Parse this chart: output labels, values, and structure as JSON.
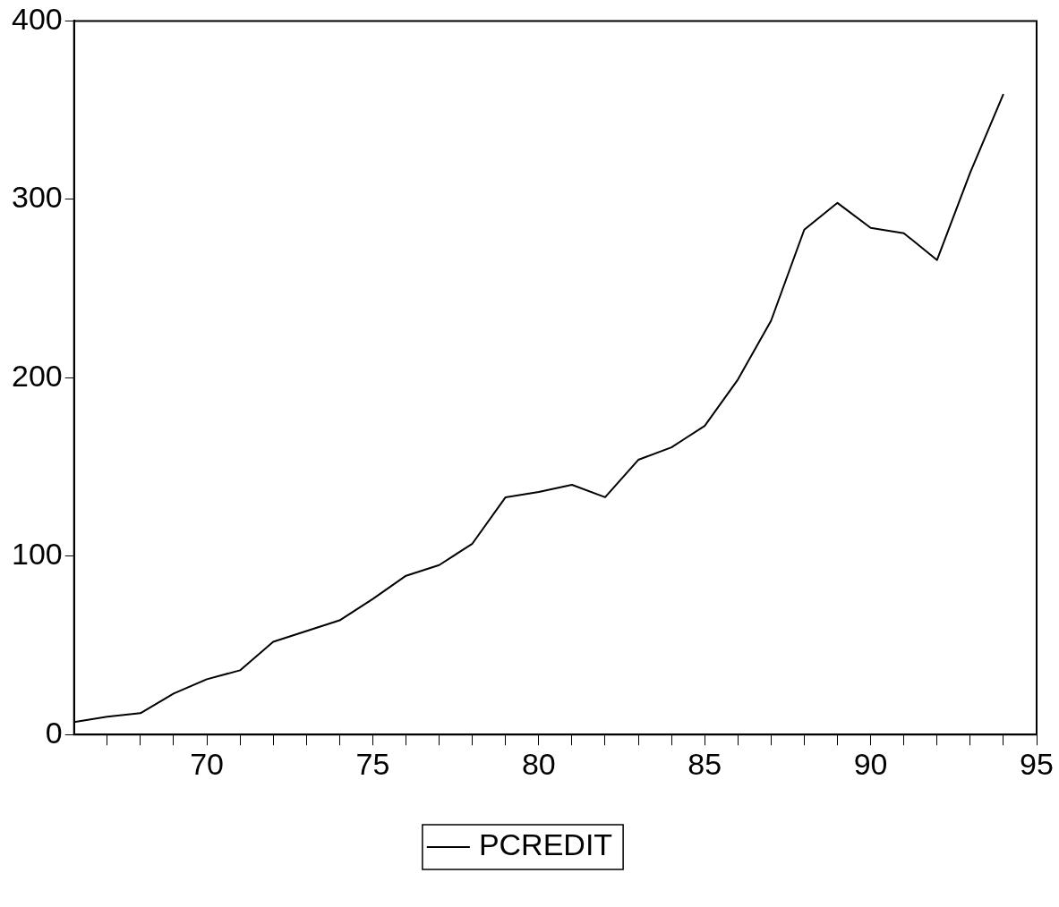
{
  "chart_data": {
    "type": "line",
    "x": [
      66,
      67,
      68,
      69,
      70,
      71,
      72,
      73,
      74,
      75,
      76,
      77,
      78,
      79,
      80,
      81,
      82,
      83,
      84,
      85,
      86,
      87,
      88,
      89,
      90,
      91,
      92,
      93,
      94
    ],
    "series": [
      {
        "name": "PCREDIT",
        "color": "#000000",
        "values": [
          7,
          10,
          12,
          23,
          31,
          36,
          52,
          58,
          64,
          76,
          89,
          95,
          107,
          133,
          136,
          140,
          133,
          154,
          161,
          173,
          199,
          232,
          283,
          298,
          284,
          281,
          266,
          315,
          359
        ]
      }
    ],
    "xlim": [
      66,
      95
    ],
    "xticks": [
      {
        "value": 67,
        "label": null
      },
      {
        "value": 68,
        "label": null
      },
      {
        "value": 69,
        "label": null
      },
      70,
      {
        "value": 71,
        "label": null
      },
      {
        "value": 72,
        "label": null
      },
      {
        "value": 73,
        "label": null
      },
      {
        "value": 74,
        "label": null
      },
      75,
      {
        "value": 76,
        "label": null
      },
      {
        "value": 77,
        "label": null
      },
      {
        "value": 78,
        "label": null
      },
      {
        "value": 79,
        "label": null
      },
      80,
      {
        "value": 81,
        "label": null
      },
      {
        "value": 82,
        "label": null
      },
      {
        "value": 83,
        "label": null
      },
      {
        "value": 84,
        "label": null
      },
      85,
      {
        "value": 86,
        "label": null
      },
      {
        "value": 87,
        "label": null
      },
      {
        "value": 88,
        "label": null
      },
      {
        "value": 89,
        "label": null
      },
      90,
      {
        "value": 91,
        "label": null
      },
      {
        "value": 92,
        "label": null
      },
      {
        "value": 93,
        "label": null
      },
      {
        "value": 94,
        "label": null
      },
      95
    ],
    "ylim": [
      0,
      400
    ],
    "yticks": [
      0,
      100,
      200,
      300,
      400
    ],
    "grid": false,
    "legend": "bottom",
    "marker": "none",
    "line_style": "solid"
  }
}
